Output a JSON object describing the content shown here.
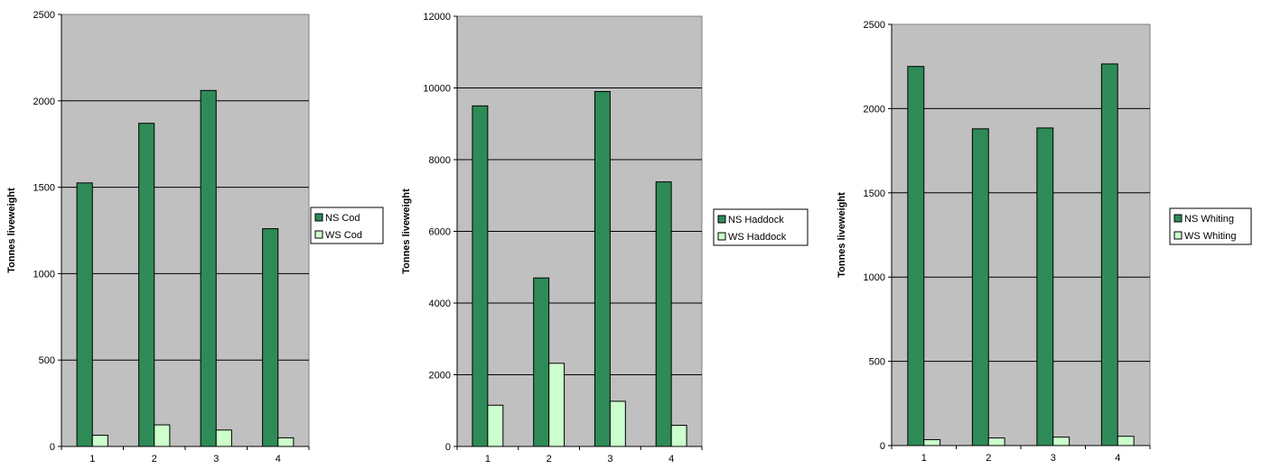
{
  "colors": {
    "ns": "#2e8b57",
    "ws": "#ccffcc",
    "plot_bg": "#c0c0c0"
  },
  "chart_data": [
    {
      "type": "bar",
      "categories": [
        "1",
        "2",
        "3",
        "4"
      ],
      "series": [
        {
          "name": "NS Cod",
          "values": [
            1525,
            1870,
            2060,
            1260
          ]
        },
        {
          "name": "WS Cod",
          "values": [
            65,
            125,
            95,
            50
          ]
        }
      ],
      "ylabel": "Tonnes liveweight",
      "ylim": [
        0,
        2500
      ],
      "yticks": [
        0,
        500,
        1000,
        1500,
        2000,
        2500
      ],
      "grid": true,
      "legend_position": "right"
    },
    {
      "type": "bar",
      "categories": [
        "1",
        "2",
        "3",
        "4"
      ],
      "series": [
        {
          "name": "NS Haddock",
          "values": [
            9500,
            4700,
            9900,
            7380
          ]
        },
        {
          "name": "WS Haddock",
          "values": [
            1150,
            2320,
            1260,
            590
          ]
        }
      ],
      "ylabel": "Tonnes liveweight",
      "ylim": [
        0,
        12000
      ],
      "yticks": [
        0,
        2000,
        4000,
        6000,
        8000,
        10000,
        12000
      ],
      "grid": true,
      "legend_position": "right"
    },
    {
      "type": "bar",
      "categories": [
        "1",
        "2",
        "3",
        "4"
      ],
      "series": [
        {
          "name": "NS Whiting",
          "values": [
            2250,
            1880,
            1885,
            2265
          ]
        },
        {
          "name": "WS Whiting",
          "values": [
            35,
            45,
            50,
            55
          ]
        }
      ],
      "ylabel": "Tonnes liveweight",
      "ylim": [
        0,
        2500
      ],
      "yticks": [
        0,
        500,
        1000,
        1500,
        2000,
        2500
      ],
      "grid": true,
      "legend_position": "right"
    }
  ]
}
